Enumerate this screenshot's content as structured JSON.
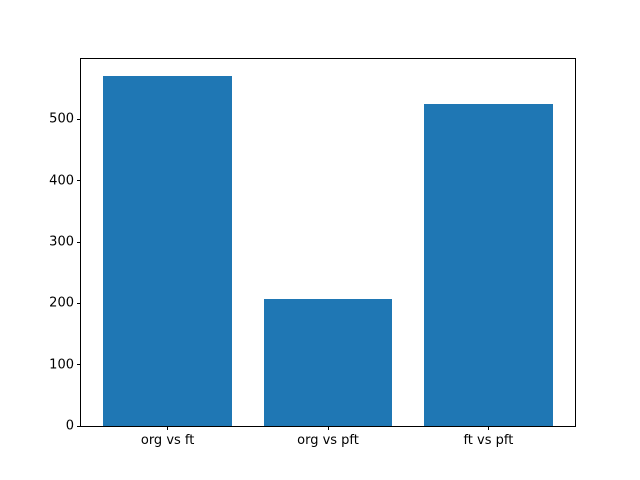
{
  "figure": {
    "background": "#ffffff"
  },
  "chart_data": {
    "type": "bar",
    "title": "",
    "xlabel": "",
    "ylabel": "",
    "categories": [
      "org vs ft",
      "org vs pft",
      "ft vs pft"
    ],
    "values": [
      570,
      207,
      525
    ],
    "bar_color": "#1f77b4",
    "bar_width": 0.8,
    "xlim": [
      -0.54,
      2.54
    ],
    "ylim": [
      0,
      598.5
    ],
    "yticks": [
      0,
      100,
      200,
      300,
      400,
      500
    ],
    "grid": false,
    "legend": false
  }
}
